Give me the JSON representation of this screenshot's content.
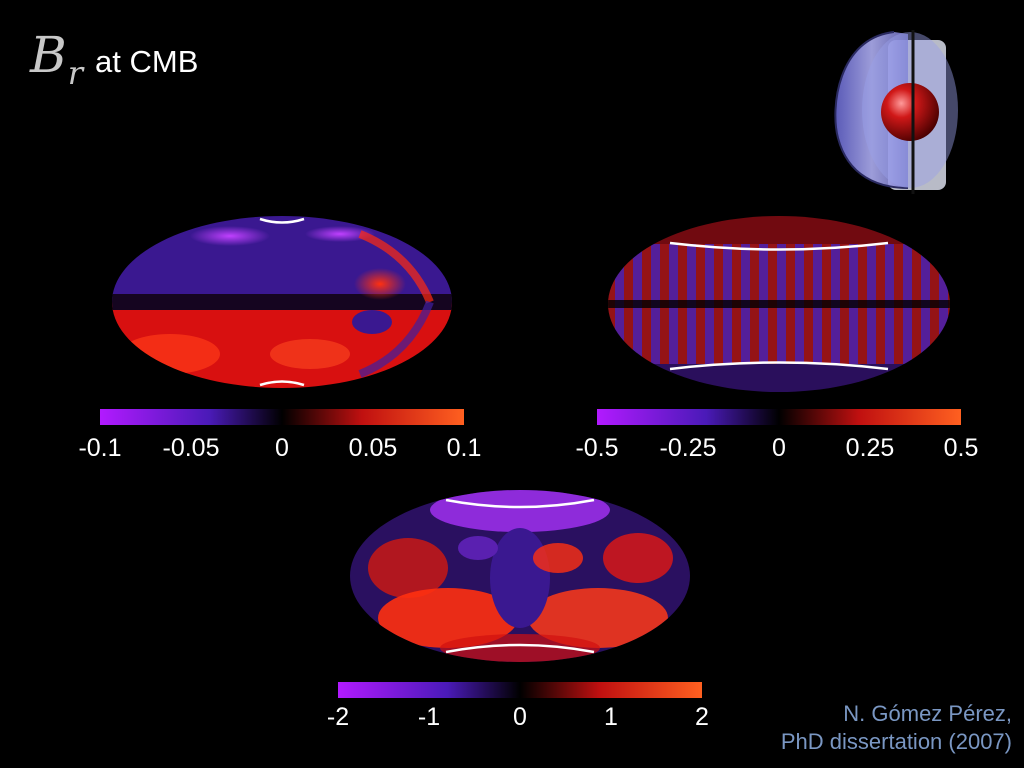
{
  "title": {
    "symbol": "B",
    "subscript": "r",
    "text": "at CMB"
  },
  "colorbar_colors": {
    "low": "#b21aff",
    "mid_low": "#4a1ab8",
    "zero": "#000000",
    "mid_high": "#c01010",
    "high": "#ff6020"
  },
  "panels": [
    {
      "id": "top-left",
      "colorbar": {
        "min": -0.1,
        "max": 0.1,
        "ticks": [
          "-0.1",
          "-0.05",
          "0",
          "0.05",
          "0.1"
        ]
      }
    },
    {
      "id": "top-right",
      "colorbar": {
        "min": -0.5,
        "max": 0.5,
        "ticks": [
          "-0.5",
          "-0.25",
          "0",
          "0.25",
          "0.5"
        ]
      }
    },
    {
      "id": "bottom",
      "colorbar": {
        "min": -2,
        "max": 2,
        "ticks": [
          "-2",
          "-1",
          "0",
          "1",
          "2"
        ]
      }
    }
  ],
  "credit": {
    "line1": "N. Gómez Pérez,",
    "line2": "PhD dissertation (2007)"
  }
}
